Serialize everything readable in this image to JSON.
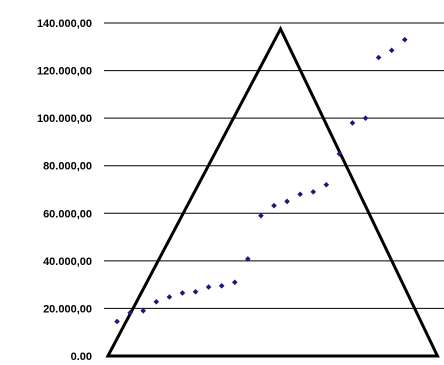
{
  "chart_data": {
    "type": "scatter",
    "title": "",
    "xlabel": "",
    "ylabel": "",
    "ylim": [
      0,
      140000
    ],
    "grid": true,
    "yticks": [
      0,
      20000,
      40000,
      60000,
      80000,
      100000,
      120000,
      140000
    ],
    "ytick_labels": [
      "0.00",
      "20.000,00",
      "40.000,00",
      "60.000,00",
      "80.000,00",
      "100.000,00",
      "120.000,00",
      "140.000,00"
    ],
    "series": [
      {
        "points": [
          {
            "x": 1,
            "y": 14500
          },
          {
            "x": 2,
            "y": 18200
          },
          {
            "x": 3,
            "y": 19000
          },
          {
            "x": 4,
            "y": 22800
          },
          {
            "x": 5,
            "y": 24800
          },
          {
            "x": 6,
            "y": 26500
          },
          {
            "x": 7,
            "y": 27000
          },
          {
            "x": 8,
            "y": 29000
          },
          {
            "x": 9,
            "y": 29500
          },
          {
            "x": 10,
            "y": 31000
          },
          {
            "x": 11,
            "y": 40800
          },
          {
            "x": 12,
            "y": 59000
          },
          {
            "x": 13,
            "y": 63200
          },
          {
            "x": 14,
            "y": 65000
          },
          {
            "x": 15,
            "y": 68000
          },
          {
            "x": 16,
            "y": 69000
          },
          {
            "x": 17,
            "y": 72000
          },
          {
            "x": 18,
            "y": 85000
          },
          {
            "x": 19,
            "y": 98000
          },
          {
            "x": 20,
            "y": 100000
          },
          {
            "x": 21,
            "y": 125500
          },
          {
            "x": 22,
            "y": 128500
          },
          {
            "x": 23,
            "y": 133000
          }
        ]
      }
    ],
    "overlay_triangle": {
      "apex": {
        "x": 13.5,
        "y": 137500
      },
      "base_left": {
        "x": 0.3,
        "y": 0
      },
      "base_right": {
        "x": 25.5,
        "y": 0
      }
    },
    "colors": {
      "points": "#1a1a7a",
      "grid": "#000000",
      "triangle": "#000000"
    }
  }
}
